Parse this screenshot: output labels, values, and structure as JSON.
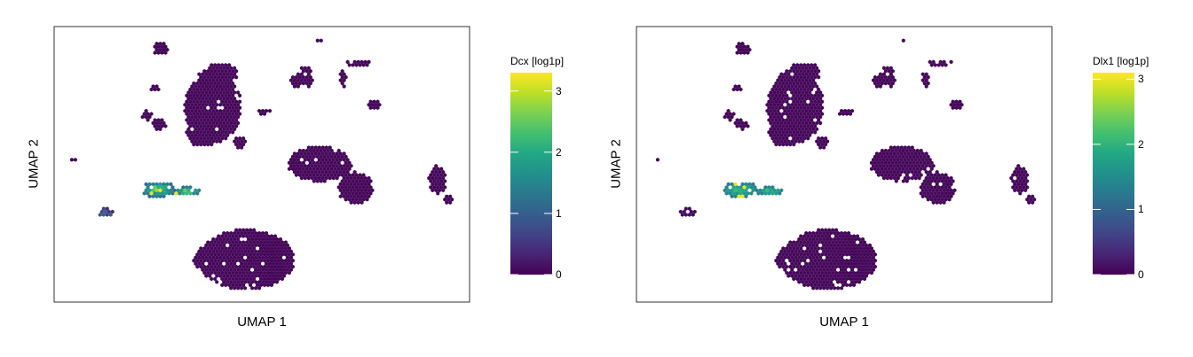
{
  "chart_data": [
    {
      "type": "scatter",
      "plot": "umap-hexbin",
      "xlabel": "UMAP 1",
      "ylabel": "UMAP 2",
      "legend": "right",
      "colorbar": {
        "title": "Dcx [log1p]",
        "range": [
          0,
          3.3
        ],
        "ticks": [
          0,
          1,
          2,
          3
        ],
        "colormap": "viridis"
      },
      "background_value": 0.05,
      "hotspot": {
        "name": "Dcx",
        "core_value": 2.6,
        "edge_value": 1.0
      },
      "side_spot_value": 0.9
    },
    {
      "type": "scatter",
      "plot": "umap-hexbin",
      "xlabel": "UMAP 1",
      "ylabel": "UMAP 2",
      "legend": "right",
      "colorbar": {
        "title": "Dlx1 [log1p]",
        "range": [
          0,
          3.1
        ],
        "ticks": [
          0,
          1,
          2,
          3
        ],
        "colormap": "viridis"
      },
      "background_value": 0.05,
      "hotspot": {
        "name": "Dlx1",
        "core_value": 2.2,
        "edge_value": 1.2
      },
      "side_spot_value": 0.1
    }
  ]
}
